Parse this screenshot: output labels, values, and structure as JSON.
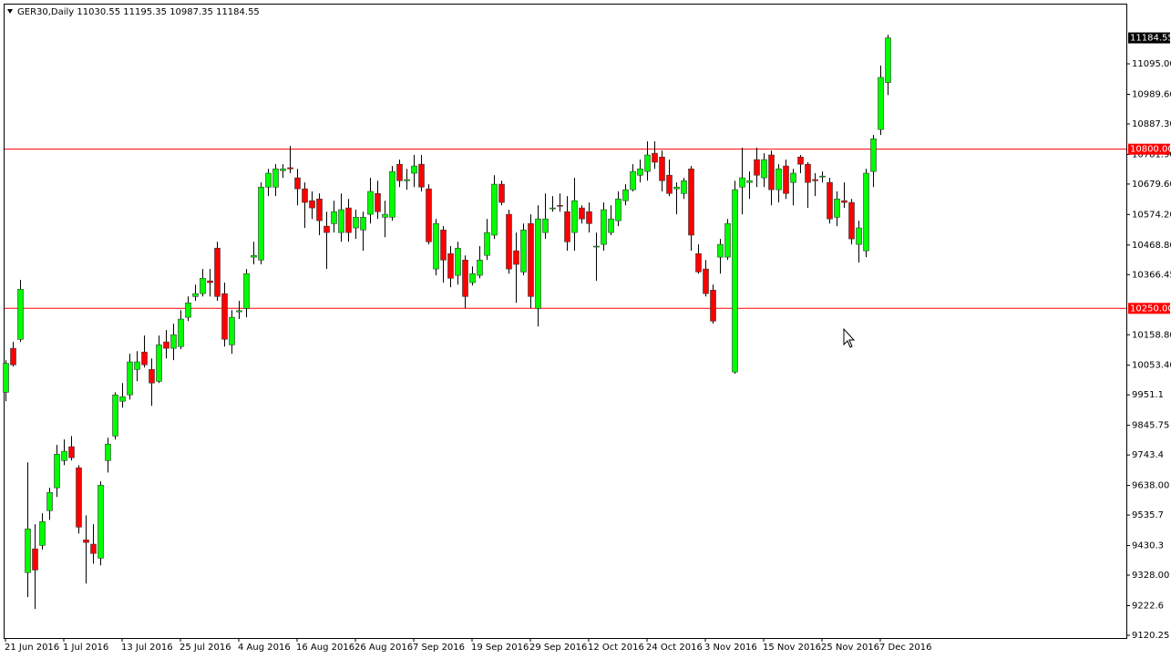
{
  "chart_data": {
    "type": "candlestick",
    "title": "GER30,Daily  11030.55 11195.35 10987.35 11184.55",
    "categories": [
      "21 Jun 2016",
      null,
      null,
      null,
      null,
      null,
      null,
      null,
      "1 Jul 2016",
      null,
      null,
      null,
      null,
      null,
      null,
      null,
      "13 Jul 2016",
      null,
      null,
      null,
      null,
      null,
      null,
      null,
      "25 Jul 2016",
      null,
      null,
      null,
      null,
      null,
      null,
      null,
      "4 Aug 2016",
      null,
      null,
      null,
      null,
      null,
      null,
      null,
      "16 Aug 2016",
      null,
      null,
      null,
      null,
      null,
      null,
      null,
      "26 Aug 2016",
      null,
      null,
      null,
      null,
      null,
      null,
      null,
      "7 Sep 2016",
      null,
      null,
      null,
      null,
      null,
      null,
      null,
      "19 Sep 2016",
      null,
      null,
      null,
      null,
      null,
      null,
      null,
      "29 Sep 2016",
      null,
      null,
      null,
      null,
      null,
      null,
      null,
      "12 Oct 2016",
      null,
      null,
      null,
      null,
      null,
      null,
      null,
      "24 Oct 2016",
      null,
      null,
      null,
      null,
      null,
      null,
      null,
      "3 Nov 2016",
      null,
      null,
      null,
      null,
      null,
      null,
      null,
      "15 Nov 2016",
      null,
      null,
      null,
      null,
      null,
      null,
      null,
      "25 Nov 2016",
      null,
      null,
      null,
      null,
      null,
      null,
      null,
      "7 Dec 2016",
      null
    ],
    "open": [
      9960,
      10112,
      10143,
      9337,
      9419,
      9431,
      9551,
      9630,
      9724,
      9772,
      9699,
      9450,
      9435,
      9387,
      9724,
      9809,
      9929,
      9951,
      10039,
      10099,
      10039,
      9998,
      10134,
      10112,
      10118,
      10219,
      10291,
      10301,
      10345,
      10458,
      10301,
      10124,
      10238,
      10250,
      10427,
      10417,
      10669,
      10669,
      10726,
      10736,
      10701,
      10663,
      10622,
      10628,
      10534,
      10543,
      10512,
      10597,
      10528,
      10521,
      10575,
      10647,
      10565,
      10565,
      10748,
      10691,
      10717,
      10748,
      10663,
      10386,
      10521,
      10439,
      10364,
      10417,
      10339,
      10364,
      10433,
      10503,
      10679,
      10575,
      10449,
      10376,
      10543,
      10250,
      10512,
      10597,
      10606,
      10584,
      10512,
      10597,
      10584,
      10465,
      10471,
      10512,
      10553,
      10622,
      10660,
      10710,
      10723,
      10786,
      10773,
      10710,
      10663,
      10647,
      10732,
      10439,
      10386,
      10313,
      10427,
      10427,
      10030,
      10669,
      10685,
      10764,
      10701,
      10780,
      10660,
      10742,
      10685,
      10773,
      10748,
      10695,
      10707,
      10685,
      10565,
      10622,
      10616,
      10471,
      10449,
      10723,
      10868,
      11030.55
    ],
    "high": [
      10071,
      10134,
      10348,
      9718,
      9504,
      9542,
      9630,
      9778,
      9797,
      9809,
      9708,
      9535,
      9504,
      9652,
      9803,
      9960,
      9992,
      10093,
      10102,
      10156,
      10077,
      10156,
      10175,
      10197,
      10244,
      10291,
      10332,
      10386,
      10386,
      10480,
      10339,
      10244,
      10276,
      10386,
      10480,
      10685,
      10732,
      10748,
      10748,
      10811,
      10732,
      10685,
      10654,
      10647,
      10584,
      10622,
      10647,
      10628,
      10591,
      10584,
      10701,
      10691,
      10622,
      10742,
      10764,
      10732,
      10780,
      10780,
      10679,
      10559,
      10534,
      10465,
      10480,
      10433,
      10395,
      10465,
      10559,
      10710,
      10691,
      10591,
      10512,
      10543,
      10575,
      10606,
      10647,
      10638,
      10647,
      10638,
      10701,
      10606,
      10616,
      10512,
      10616,
      10606,
      10654,
      10679,
      10748,
      10764,
      10827,
      10827,
      10795,
      10764,
      10685,
      10701,
      10742,
      10471,
      10417,
      10332,
      10490,
      10559,
      10691,
      10805,
      10723,
      10805,
      10786,
      10795,
      10748,
      10764,
      10732,
      10780,
      10755,
      10717,
      10723,
      10701,
      10654,
      10685,
      10628,
      10553,
      10732,
      10849,
      11089,
      11195.35
    ],
    "low": [
      9929,
      10049,
      10134,
      9252,
      9211,
      9416,
      9519,
      9598,
      9708,
      9724,
      9472,
      9299,
      9368,
      9362,
      9683,
      9797,
      9907,
      9935,
      9998,
      10046,
      9913,
      9992,
      10077,
      10071,
      10109,
      10206,
      10276,
      10291,
      10291,
      10276,
      10118,
      10093,
      10213,
      10219,
      10402,
      10402,
      10638,
      10638,
      10701,
      10717,
      10606,
      10528,
      10559,
      10503,
      10386,
      10512,
      10480,
      10480,
      10490,
      10449,
      10543,
      10559,
      10496,
      10553,
      10669,
      10660,
      10669,
      10654,
      10471,
      10364,
      10339,
      10323,
      10332,
      10250,
      10329,
      10354,
      10417,
      10490,
      10606,
      10370,
      10269,
      10364,
      10250,
      10187,
      10490,
      10584,
      10584,
      10449,
      10449,
      10543,
      10512,
      10345,
      10449,
      10503,
      10534,
      10606,
      10654,
      10685,
      10691,
      10732,
      10654,
      10638,
      10575,
      10628,
      10449,
      10370,
      10291,
      10197,
      10370,
      10417,
      10024,
      10575,
      10628,
      10669,
      10669,
      10606,
      10616,
      10628,
      10606,
      10717,
      10597,
      10638,
      10685,
      10543,
      10534,
      10597,
      10471,
      10408,
      10427,
      10669,
      10849,
      10987.35
    ],
    "close": [
      10060,
      10055,
      10316,
      9488,
      9346,
      9513,
      9614,
      9746,
      9756,
      9734,
      9494,
      9441,
      9403,
      9639,
      9781,
      9951,
      9945,
      10065,
      10065,
      10055,
      9992,
      10124,
      10112,
      10159,
      10213,
      10269,
      10301,
      10354,
      10339,
      10291,
      10143,
      10219,
      10242,
      10370,
      10433,
      10669,
      10717,
      10732,
      10732,
      10732,
      10663,
      10616,
      10597,
      10553,
      10512,
      10584,
      10591,
      10512,
      10565,
      10565,
      10654,
      10584,
      10575,
      10723,
      10691,
      10695,
      10742,
      10669,
      10480,
      10543,
      10417,
      10354,
      10458,
      10291,
      10370,
      10417,
      10512,
      10679,
      10616,
      10386,
      10402,
      10521,
      10291,
      10559,
      10559,
      10597,
      10603,
      10480,
      10622,
      10559,
      10543,
      10465,
      10591,
      10559,
      10628,
      10660,
      10723,
      10732,
      10780,
      10755,
      10691,
      10647,
      10669,
      10691,
      10503,
      10376,
      10301,
      10206,
      10471,
      10543,
      10660,
      10701,
      10691,
      10710,
      10764,
      10660,
      10732,
      10647,
      10717,
      10748,
      10685,
      10691,
      10707,
      10559,
      10628,
      10616,
      10490,
      10528,
      10717,
      10836,
      11048,
      11184.55
    ],
    "up_color": "#00ff00",
    "down_color": "#ff0000",
    "ylim": [
      9110.8,
      11302.9
    ],
    "yticks": [
      {
        "value": 11095,
        "label": "11095.00"
      },
      {
        "value": 10989.6,
        "label": "10989.60"
      },
      {
        "value": 10887.3,
        "label": "10887.30"
      },
      {
        "value": 10781.9,
        "label": "10781.90"
      },
      {
        "value": 10679.6,
        "label": "10679.60"
      },
      {
        "value": 10574.2,
        "label": "10574.20"
      },
      {
        "value": 10468.8,
        "label": "10468.80"
      },
      {
        "value": 10366.45,
        "label": "10366.45"
      },
      {
        "value": 10158.8,
        "label": "10158.80"
      },
      {
        "value": 10053.4,
        "label": "10053.40"
      },
      9951.1,
      9845.75,
      9743.4,
      {
        "value": 9638,
        "label": "9638.00"
      },
      9535.7,
      9430.3,
      {
        "value": 9328,
        "label": "9328.00"
      },
      9222.6,
      9120.25
    ],
    "hlines": [
      {
        "value": 10800,
        "label": "10800.00"
      },
      {
        "value": 10250,
        "label": "10250.00"
      }
    ],
    "hline_color": "#ff0000"
  }
}
